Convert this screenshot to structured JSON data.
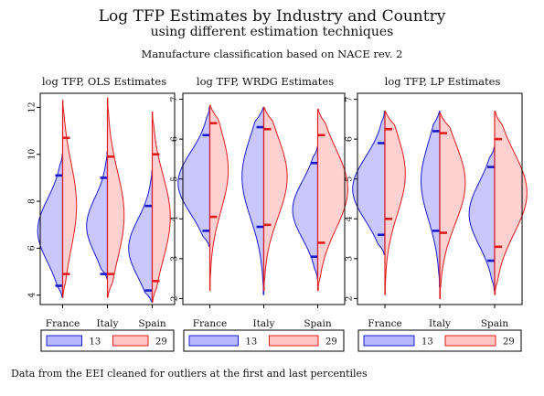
{
  "header": {
    "title": "Log TFP Estimates by Industry and Country",
    "title_line2": "using different estimation techniques",
    "subtitle": "Manufacture classification based on NACE rev. 2"
  },
  "note": "Data from the EEI cleaned for outliers at the first and last percentiles",
  "colors": {
    "series_13_fill": "#b8b8ff",
    "series_13_line": "#1a1acc",
    "series_29_fill": "#ffc4c4",
    "series_29_line": "#e01c1c"
  },
  "chart_data": [
    {
      "type": "split-violin",
      "title": "log TFP, OLS Estimates",
      "categories": [
        "France",
        "Italy",
        "Spain"
      ],
      "ylim": [
        3.6,
        12.6
      ],
      "yticks": [
        4,
        6,
        8,
        10,
        12
      ],
      "legend": [
        "13",
        "29"
      ],
      "series": [
        {
          "name": "13",
          "ranges": [
            [
              3.9,
              10.0
            ],
            [
              4.7,
              10.1
            ],
            [
              3.7,
              9.3
            ]
          ],
          "quartiles": [
            [
              4.4,
              9.1
            ],
            [
              4.9,
              9.0
            ],
            [
              4.2,
              7.8
            ]
          ],
          "widths": [
            0.9,
            0.75,
            0.85
          ]
        },
        {
          "name": "29",
          "ranges": [
            [
              3.9,
              12.3
            ],
            [
              3.9,
              12.4
            ],
            [
              3.7,
              11.8
            ]
          ],
          "quartiles": [
            [
              4.9,
              10.7
            ],
            [
              4.9,
              9.9
            ],
            [
              4.6,
              10.0
            ]
          ],
          "widths": [
            0.5,
            0.6,
            0.65
          ]
        }
      ]
    },
    {
      "type": "split-violin",
      "title": "log TFP, WRDG Estimates",
      "categories": [
        "France",
        "Italy",
        "Spain"
      ],
      "ylim": [
        1.85,
        7.15
      ],
      "yticks": [
        2,
        3,
        4,
        5,
        6,
        7
      ],
      "legend": [
        "13",
        "29"
      ],
      "series": [
        {
          "name": "13",
          "ranges": [
            [
              3.3,
              6.8
            ],
            [
              2.1,
              6.8
            ],
            [
              2.5,
              5.8
            ]
          ],
          "quartiles": [
            [
              3.7,
              6.1
            ],
            [
              3.8,
              6.3
            ],
            [
              3.05,
              5.4
            ]
          ],
          "widths": [
            0.95,
            0.65,
            0.75
          ]
        },
        {
          "name": "29",
          "ranges": [
            [
              2.2,
              6.85
            ],
            [
              2.2,
              6.8
            ],
            [
              2.2,
              6.75
            ]
          ],
          "quartiles": [
            [
              4.05,
              6.4
            ],
            [
              3.85,
              6.25
            ],
            [
              3.4,
              6.1
            ]
          ],
          "widths": [
            0.55,
            0.7,
            0.9
          ]
        }
      ]
    },
    {
      "type": "split-violin",
      "title": "log TFP, LP Estimates",
      "categories": [
        "France",
        "Italy",
        "Spain"
      ],
      "ylim": [
        1.85,
        7.15
      ],
      "yticks": [
        2,
        3,
        4,
        5,
        6,
        7
      ],
      "legend": [
        "13",
        "29"
      ],
      "series": [
        {
          "name": "13",
          "ranges": [
            [
              3.1,
              6.7
            ],
            [
              2.3,
              6.7
            ],
            [
              2.2,
              5.8
            ]
          ],
          "quartiles": [
            [
              3.6,
              5.9
            ],
            [
              3.7,
              6.2
            ],
            [
              2.95,
              5.3
            ]
          ],
          "widths": [
            0.95,
            0.55,
            0.75
          ]
        },
        {
          "name": "29",
          "ranges": [
            [
              2.1,
              6.7
            ],
            [
              2.0,
              6.65
            ],
            [
              2.1,
              6.7
            ]
          ],
          "quartiles": [
            [
              4.0,
              6.25
            ],
            [
              3.65,
              6.15
            ],
            [
              3.3,
              6.0
            ]
          ],
          "widths": [
            0.6,
            0.75,
            0.95
          ]
        }
      ]
    }
  ]
}
